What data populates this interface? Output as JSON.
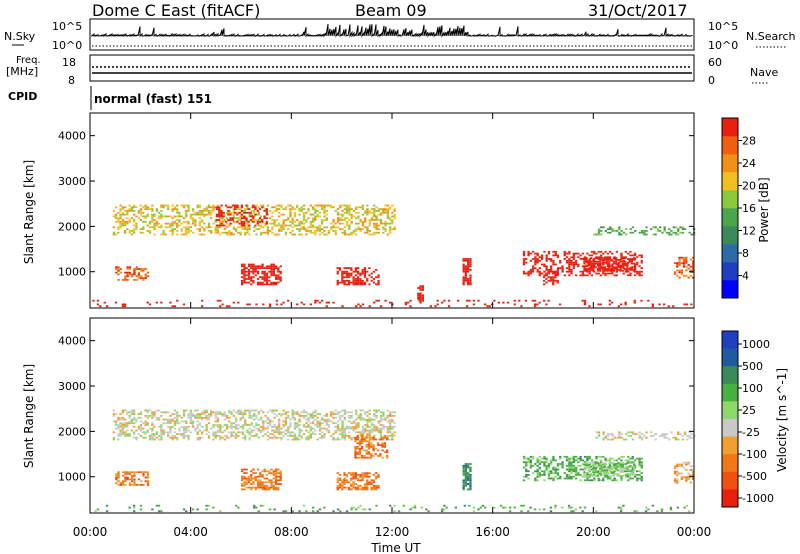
{
  "header": {
    "station": "Dome C East (fitACF)",
    "beam": "Beam 09",
    "date": "31/Oct/2017"
  },
  "noise_panel": {
    "left_label": "N.Sky",
    "right_label": "N.Search",
    "left_ticks": [
      "10^5",
      "10^0"
    ],
    "right_ticks": [
      "10^5",
      "10^0"
    ]
  },
  "freq_panel": {
    "left_label_line1": "Freq.",
    "left_label_line2": "[MHz]",
    "right_label": "Nave",
    "left_ticks": [
      "18",
      "8"
    ],
    "right_ticks": [
      "60",
      "0"
    ]
  },
  "cpid": {
    "label": "CPID",
    "value": "normal (fast) 151"
  },
  "x_axis": {
    "label": "Time UT",
    "ticks": [
      "00:00",
      "04:00",
      "08:00",
      "12:00",
      "16:00",
      "20:00",
      "00:00"
    ],
    "range_hours": [
      0,
      24
    ]
  },
  "chart_data": [
    {
      "type": "heatmap",
      "title": "Power",
      "ylabel": "Slant Range [km]",
      "yticks": [
        "1000",
        "2000",
        "3000",
        "4000"
      ],
      "ylim": [
        200,
        4500
      ],
      "colorbar_label": "Power [dB]",
      "colorbar_ticks": [
        "4",
        "8",
        "12",
        "16",
        "20",
        "24",
        "28"
      ],
      "colorbar_range": [
        0,
        32
      ],
      "colors": [
        "#0000ff",
        "#1f3fc0",
        "#2d6aa8",
        "#3a8a5a",
        "#4aa64a",
        "#8cc83c",
        "#f0c020",
        "#f09018",
        "#f06010",
        "#e82010"
      ],
      "regions": [
        {
          "t": [
            0.9,
            12.1
          ],
          "r": [
            1800,
            2450
          ],
          "v": 6,
          "dens": 0.45
        },
        {
          "t": [
            5.0,
            7.0
          ],
          "r": [
            2000,
            2450
          ],
          "v": 12,
          "dens": 0.35
        },
        {
          "t": [
            1.0,
            2.3
          ],
          "r": [
            800,
            1100
          ],
          "v": 8,
          "dens": 0.5
        },
        {
          "t": [
            6.0,
            7.6
          ],
          "r": [
            700,
            1150
          ],
          "v": 12,
          "dens": 0.6
        },
        {
          "t": [
            9.8,
            11.5
          ],
          "r": [
            700,
            1100
          ],
          "v": 10,
          "dens": 0.55
        },
        {
          "t": [
            14.8,
            15.1
          ],
          "r": [
            700,
            1300
          ],
          "v": 22,
          "dens": 0.8
        },
        {
          "t": [
            13.0,
            13.2
          ],
          "r": [
            300,
            700
          ],
          "v": 16,
          "dens": 0.6
        },
        {
          "t": [
            17.2,
            21.9
          ],
          "r": [
            900,
            1450
          ],
          "v": 10,
          "dens": 0.45
        },
        {
          "t": [
            19.6,
            21.6
          ],
          "r": [
            1000,
            1300
          ],
          "v": 22,
          "dens": 0.7
        },
        {
          "t": [
            18.0,
            18.6
          ],
          "r": [
            700,
            1000
          ],
          "v": 14,
          "dens": 0.6
        },
        {
          "t": [
            20.0,
            24.0
          ],
          "r": [
            1800,
            2000
          ],
          "v": 4,
          "dens": 0.35
        },
        {
          "t": [
            23.2,
            24.0
          ],
          "r": [
            850,
            1300
          ],
          "v": 8,
          "dens": 0.5
        },
        {
          "t": [
            0.0,
            24.0
          ],
          "r": [
            220,
            380
          ],
          "v": 18,
          "dens": 0.12
        }
      ]
    },
    {
      "type": "heatmap",
      "title": "Velocity",
      "ylabel": "Slant Range [km]",
      "yticks": [
        "1000",
        "2000",
        "3000",
        "4000"
      ],
      "ylim": [
        200,
        4500
      ],
      "colorbar_label": "Velocity [m s^-1]",
      "colorbar_ticks": [
        "1000",
        "500",
        "100",
        "25",
        "-25",
        "-100",
        "-500",
        "-1000"
      ],
      "colors": [
        "#2040c0",
        "#205aa0",
        "#3a8a5a",
        "#48b040",
        "#8ed86a",
        "#c8c8c8",
        "#f0a030",
        "#f07818",
        "#f05010",
        "#e82010"
      ],
      "regions": [
        {
          "t": [
            0.9,
            12.1
          ],
          "r": [
            1800,
            2450
          ],
          "v": 5,
          "dens": 0.5
        },
        {
          "t": [
            1.0,
            2.3
          ],
          "r": [
            800,
            1100
          ],
          "v": 7,
          "dens": 0.55
        },
        {
          "t": [
            6.0,
            7.6
          ],
          "r": [
            700,
            1150
          ],
          "v": 7,
          "dens": 0.65
        },
        {
          "t": [
            9.8,
            11.5
          ],
          "r": [
            700,
            1100
          ],
          "v": 7,
          "dens": 0.6
        },
        {
          "t": [
            10.5,
            11.8
          ],
          "r": [
            1400,
            1900
          ],
          "v": 7,
          "dens": 0.5
        },
        {
          "t": [
            14.8,
            15.1
          ],
          "r": [
            700,
            1300
          ],
          "v": 2,
          "dens": 0.8
        },
        {
          "t": [
            17.2,
            21.9
          ],
          "r": [
            900,
            1450
          ],
          "v": 3,
          "dens": 0.5
        },
        {
          "t": [
            19.6,
            21.6
          ],
          "r": [
            1000,
            1300
          ],
          "v": 4,
          "dens": 0.7
        },
        {
          "t": [
            20.0,
            24.0
          ],
          "r": [
            1800,
            2000
          ],
          "v": 5,
          "dens": 0.35
        },
        {
          "t": [
            23.2,
            24.0
          ],
          "r": [
            850,
            1300
          ],
          "v": 6,
          "dens": 0.45
        },
        {
          "t": [
            0.0,
            24.0
          ],
          "r": [
            220,
            380
          ],
          "v": 3,
          "dens": 0.12
        }
      ]
    }
  ]
}
